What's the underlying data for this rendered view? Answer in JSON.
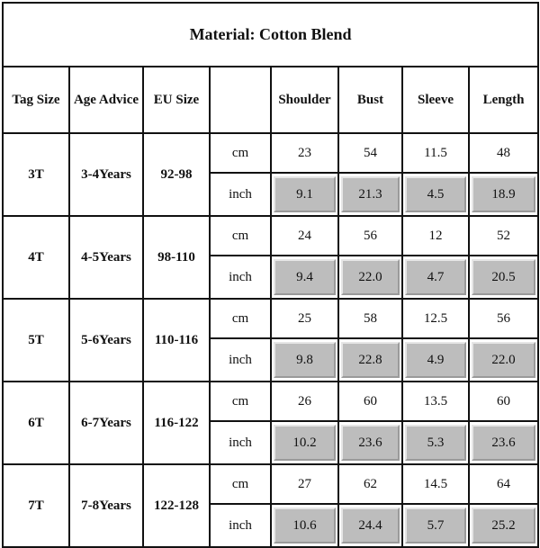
{
  "title": "Material: Cotton Blend",
  "headers": [
    "Tag Size",
    "Age Advice",
    "EU Size",
    "",
    "Shoulder",
    "Bust",
    "Sleeve",
    "Length"
  ],
  "unit_labels": {
    "cm": "cm",
    "inch": "inch"
  },
  "rows": [
    {
      "tag": "3T",
      "age": "3-4Years",
      "eu": "92-98",
      "cm": [
        "23",
        "54",
        "11.5",
        "48"
      ],
      "inch": [
        "9.1",
        "21.3",
        "4.5",
        "18.9"
      ]
    },
    {
      "tag": "4T",
      "age": "4-5Years",
      "eu": "98-110",
      "cm": [
        "24",
        "56",
        "12",
        "52"
      ],
      "inch": [
        "9.4",
        "22.0",
        "4.7",
        "20.5"
      ]
    },
    {
      "tag": "5T",
      "age": "5-6Years",
      "eu": "110-116",
      "cm": [
        "25",
        "58",
        "12.5",
        "56"
      ],
      "inch": [
        "9.8",
        "22.8",
        "4.9",
        "22.0"
      ]
    },
    {
      "tag": "6T",
      "age": "6-7Years",
      "eu": "116-122",
      "cm": [
        "26",
        "60",
        "13.5",
        "60"
      ],
      "inch": [
        "10.2",
        "23.6",
        "5.3",
        "23.6"
      ]
    },
    {
      "tag": "7T",
      "age": "7-8Years",
      "eu": "122-128",
      "cm": [
        "27",
        "62",
        "14.5",
        "64"
      ],
      "inch": [
        "10.6",
        "24.4",
        "5.7",
        "25.2"
      ]
    }
  ],
  "colors": {
    "highlight_cell": "#bdbdbd",
    "border": "#111111"
  }
}
